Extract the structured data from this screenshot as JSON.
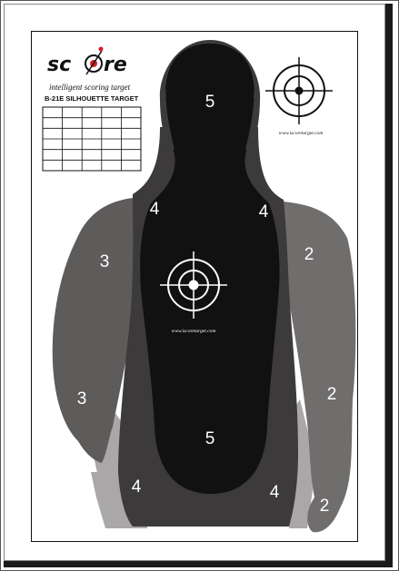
{
  "branding": {
    "logo_prefix": "sc",
    "logo_suffix": "re",
    "tagline": "intelligent scoring target",
    "target_name": "B-21E SILHOUETTE TARGET",
    "url_top": "www.iscoretarget.com",
    "url_center": "www.iscoretarget.com"
  },
  "score_grid": {
    "rows": 6,
    "cols": 5
  },
  "zones": {
    "head": "5",
    "center": "5",
    "left_shoulder": "4",
    "right_shoulder": "4",
    "left_arm_upper": "3",
    "right_arm_upper": "2",
    "left_arm_lower": "3",
    "right_arm_lower": "2",
    "left_bottom": "4",
    "right_bottom": "4",
    "right_hand": "2"
  },
  "colors": {
    "zone5": "#111111",
    "zone4": "#3c3a3a",
    "zone3": "#5e5b5b",
    "zone2": "#706d6d",
    "outer_light": "#a9a7a7",
    "logo_accent": "#d42027"
  }
}
